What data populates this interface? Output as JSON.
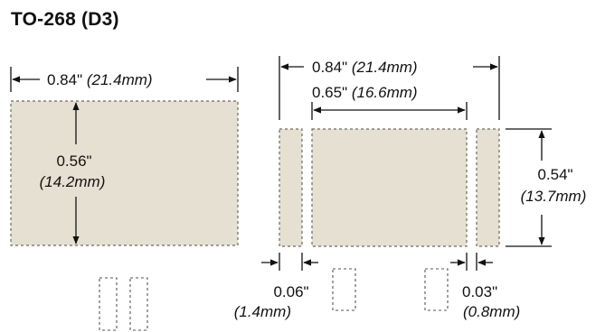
{
  "title": "TO-268 (D3)",
  "left_footprint": {
    "width_in": "0.84\"",
    "width_mm": "(21.4mm)",
    "height_in": "0.56\"",
    "height_mm": "(14.2mm)"
  },
  "right_footprint": {
    "overall_width_in": "0.84\"",
    "overall_width_mm": "(21.4mm)",
    "center_pad_width_in": "0.65\"",
    "center_pad_width_mm": "(16.6mm)",
    "height_in": "0.54\"",
    "height_mm": "(13.7mm)",
    "left_gap_in": "0.06\"",
    "left_gap_mm": "(1.4mm)",
    "right_gap_in": "0.03\"",
    "right_gap_mm": "(0.8mm)"
  },
  "colors": {
    "pad_fill": "#e6e0d2",
    "pad_outline": "#6f6a60",
    "lines": "#111111"
  }
}
